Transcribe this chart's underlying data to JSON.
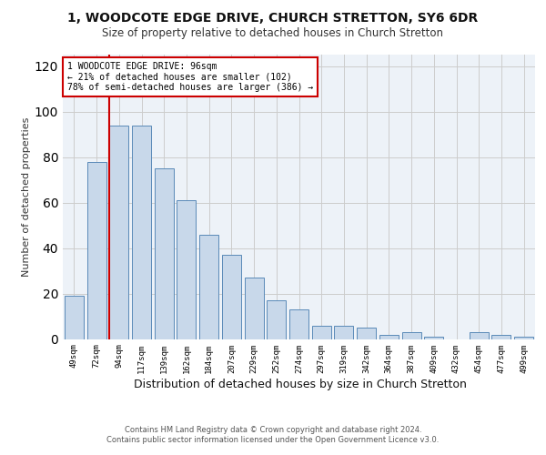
{
  "title1": "1, WOODCOTE EDGE DRIVE, CHURCH STRETTON, SY6 6DR",
  "title2": "Size of property relative to detached houses in Church Stretton",
  "xlabel": "Distribution of detached houses by size in Church Stretton",
  "ylabel": "Number of detached properties",
  "categories": [
    "49sqm",
    "72sqm",
    "94sqm",
    "117sqm",
    "139sqm",
    "162sqm",
    "184sqm",
    "207sqm",
    "229sqm",
    "252sqm",
    "274sqm",
    "297sqm",
    "319sqm",
    "342sqm",
    "364sqm",
    "387sqm",
    "409sqm",
    "432sqm",
    "454sqm",
    "477sqm",
    "499sqm"
  ],
  "values": [
    19,
    78,
    94,
    94,
    75,
    61,
    46,
    37,
    27,
    17,
    13,
    6,
    6,
    5,
    2,
    3,
    1,
    0,
    3,
    2,
    1
  ],
  "bar_color": "#c8d8ea",
  "bar_edge_color": "#5a8ab8",
  "highlight_index": 2,
  "highlight_line_color": "#cc0000",
  "annotation_line1": "1 WOODCOTE EDGE DRIVE: 96sqm",
  "annotation_line2": "← 21% of detached houses are smaller (102)",
  "annotation_line3": "78% of semi-detached houses are larger (386) →",
  "annotation_box_facecolor": "#ffffff",
  "annotation_box_edgecolor": "#cc0000",
  "ylim": [
    0,
    125
  ],
  "yticks": [
    0,
    20,
    40,
    60,
    80,
    100,
    120
  ],
  "grid_color": "#cccccc",
  "bg_color": "#edf2f8",
  "title1_fontsize": 10,
  "title2_fontsize": 8.5,
  "xlabel_fontsize": 9,
  "ylabel_fontsize": 8,
  "footer1": "Contains HM Land Registry data © Crown copyright and database right 2024.",
  "footer2": "Contains public sector information licensed under the Open Government Licence v3.0."
}
